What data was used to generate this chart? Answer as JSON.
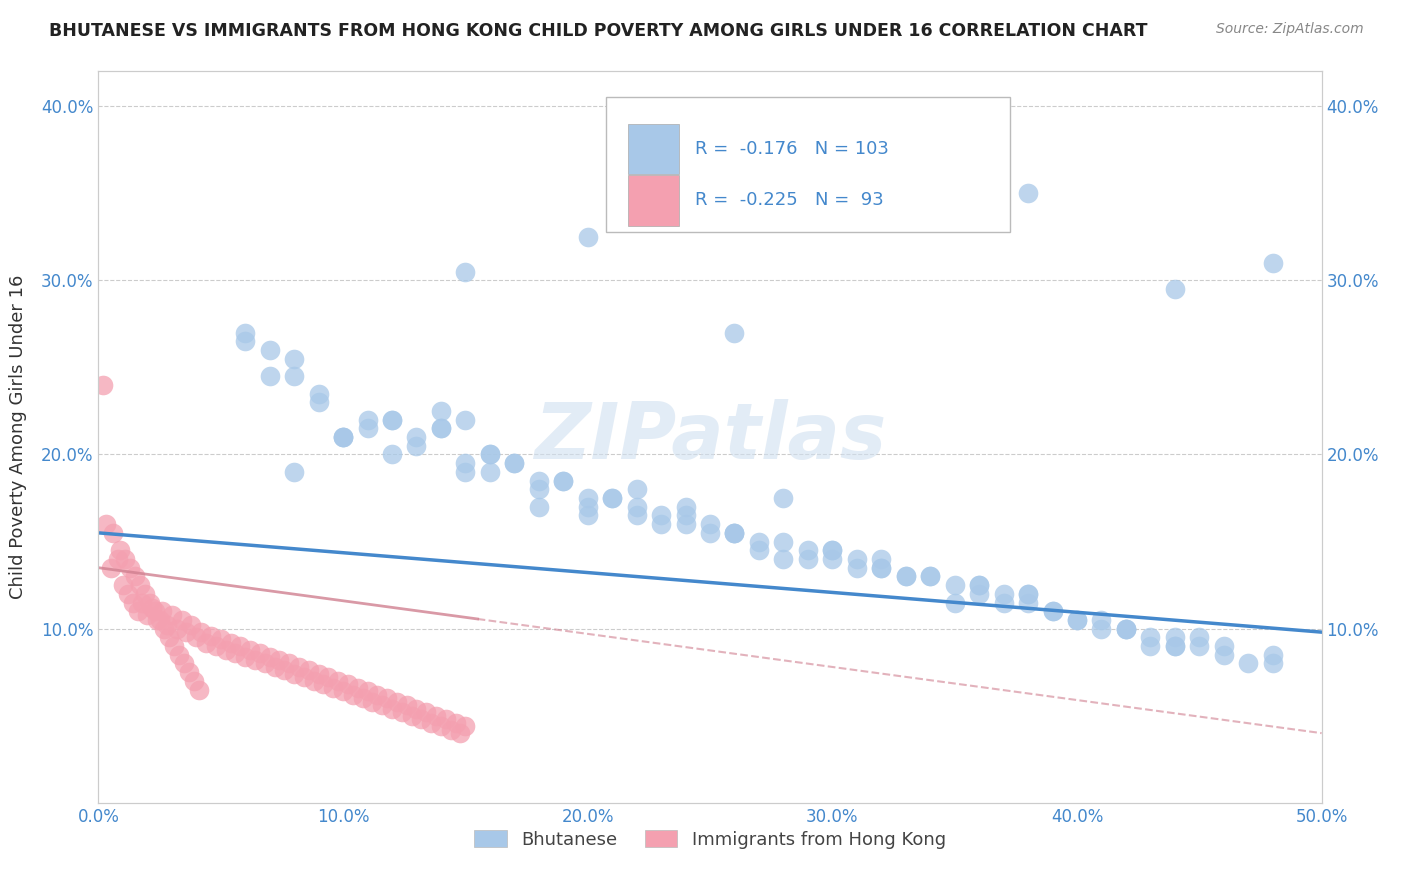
{
  "title": "BHUTANESE VS IMMIGRANTS FROM HONG KONG CHILD POVERTY AMONG GIRLS UNDER 16 CORRELATION CHART",
  "source": "Source: ZipAtlas.com",
  "ylabel": "Child Poverty Among Girls Under 16",
  "xlim": [
    0.0,
    0.5
  ],
  "ylim": [
    0.0,
    0.42
  ],
  "xticks": [
    0.0,
    0.1,
    0.2,
    0.3,
    0.4,
    0.5
  ],
  "yticks": [
    0.0,
    0.1,
    0.2,
    0.3,
    0.4
  ],
  "xtick_labels": [
    "0.0%",
    "10.0%",
    "20.0%",
    "30.0%",
    "40.0%",
    "50.0%"
  ],
  "ytick_labels_left": [
    "",
    "10.0%",
    "20.0%",
    "30.0%",
    "40.0%"
  ],
  "ytick_labels_right": [
    "",
    "10.0%",
    "20.0%",
    "30.0%",
    "40.0%"
  ],
  "bhutanese_color": "#a8c8e8",
  "hk_color": "#f4a0b0",
  "line_blue": "#4488cc",
  "line_pink": "#d08090",
  "R_blue": -0.176,
  "N_blue": 103,
  "R_pink": -0.225,
  "N_pink": 93,
  "legend_blue_label": "Bhutanese",
  "legend_pink_label": "Immigrants from Hong Kong",
  "watermark": "ZIPatlas",
  "background_color": "#ffffff",
  "grid_color": "#cccccc",
  "blue_line_x0": 0.0,
  "blue_line_y0": 0.155,
  "blue_line_x1": 0.5,
  "blue_line_y1": 0.098,
  "pink_line_x0": 0.0,
  "pink_line_y0": 0.135,
  "pink_line_x1": 0.5,
  "pink_line_y1": 0.04,
  "bhutanese_x": [
    0.32,
    0.38,
    0.28,
    0.46,
    0.12,
    0.18,
    0.25,
    0.33,
    0.42,
    0.15,
    0.08,
    0.22,
    0.3,
    0.44,
    0.1,
    0.35,
    0.2,
    0.16,
    0.26,
    0.4,
    0.14,
    0.36,
    0.24,
    0.48,
    0.06,
    0.19,
    0.31,
    0.43,
    0.11,
    0.27,
    0.37,
    0.21,
    0.13,
    0.29,
    0.45,
    0.17,
    0.23,
    0.39,
    0.07,
    0.34,
    0.41,
    0.09,
    0.28,
    0.16,
    0.22,
    0.38,
    0.12,
    0.3,
    0.44,
    0.18,
    0.26,
    0.14,
    0.32,
    0.2,
    0.46,
    0.1,
    0.36,
    0.24,
    0.08,
    0.42,
    0.15,
    0.33,
    0.21,
    0.27,
    0.39,
    0.13,
    0.47,
    0.06,
    0.19,
    0.35,
    0.23,
    0.31,
    0.43,
    0.11,
    0.29,
    0.17,
    0.37,
    0.25,
    0.41,
    0.09,
    0.34,
    0.45,
    0.07,
    0.28,
    0.16,
    0.22,
    0.38,
    0.14,
    0.3,
    0.2,
    0.44,
    0.18,
    0.26,
    0.32,
    0.1,
    0.4,
    0.24,
    0.12,
    0.36,
    0.08,
    0.42,
    0.15,
    0.48
  ],
  "bhutanese_y": [
    0.14,
    0.12,
    0.175,
    0.09,
    0.2,
    0.17,
    0.16,
    0.13,
    0.1,
    0.22,
    0.19,
    0.18,
    0.145,
    0.095,
    0.21,
    0.115,
    0.165,
    0.19,
    0.155,
    0.105,
    0.225,
    0.125,
    0.17,
    0.085,
    0.27,
    0.185,
    0.135,
    0.09,
    0.215,
    0.15,
    0.12,
    0.175,
    0.21,
    0.14,
    0.095,
    0.195,
    0.16,
    0.11,
    0.245,
    0.13,
    0.1,
    0.23,
    0.14,
    0.2,
    0.165,
    0.115,
    0.22,
    0.145,
    0.09,
    0.18,
    0.155,
    0.215,
    0.135,
    0.17,
    0.085,
    0.21,
    0.12,
    0.16,
    0.255,
    0.1,
    0.19,
    0.13,
    0.175,
    0.145,
    0.11,
    0.205,
    0.08,
    0.265,
    0.185,
    0.125,
    0.165,
    0.14,
    0.095,
    0.22,
    0.145,
    0.195,
    0.115,
    0.155,
    0.105,
    0.235,
    0.13,
    0.09,
    0.26,
    0.15,
    0.2,
    0.17,
    0.12,
    0.215,
    0.14,
    0.175,
    0.09,
    0.185,
    0.155,
    0.135,
    0.21,
    0.105,
    0.165,
    0.22,
    0.125,
    0.245,
    0.1,
    0.195,
    0.08
  ],
  "bhutanese_y_outliers": [
    0.38,
    0.35,
    0.325,
    0.295,
    0.27,
    0.305,
    0.31
  ],
  "bhutanese_x_outliers": [
    0.32,
    0.38,
    0.2,
    0.44,
    0.26,
    0.15,
    0.48
  ],
  "hk_x": [
    0.005,
    0.008,
    0.01,
    0.012,
    0.014,
    0.016,
    0.018,
    0.02,
    0.022,
    0.024,
    0.026,
    0.028,
    0.03,
    0.032,
    0.034,
    0.036,
    0.038,
    0.04,
    0.042,
    0.044,
    0.046,
    0.048,
    0.05,
    0.052,
    0.054,
    0.056,
    0.058,
    0.06,
    0.062,
    0.064,
    0.066,
    0.068,
    0.07,
    0.072,
    0.074,
    0.076,
    0.078,
    0.08,
    0.082,
    0.084,
    0.086,
    0.088,
    0.09,
    0.092,
    0.094,
    0.096,
    0.098,
    0.1,
    0.102,
    0.104,
    0.106,
    0.108,
    0.11,
    0.112,
    0.114,
    0.116,
    0.118,
    0.12,
    0.122,
    0.124,
    0.126,
    0.128,
    0.13,
    0.132,
    0.134,
    0.136,
    0.138,
    0.14,
    0.142,
    0.144,
    0.146,
    0.148,
    0.15,
    0.003,
    0.006,
    0.009,
    0.011,
    0.013,
    0.015,
    0.017,
    0.019,
    0.021,
    0.023,
    0.025,
    0.027,
    0.029,
    0.031,
    0.033,
    0.035,
    0.037,
    0.039,
    0.041,
    0.002
  ],
  "hk_y": [
    0.135,
    0.14,
    0.125,
    0.12,
    0.115,
    0.11,
    0.115,
    0.108,
    0.112,
    0.105,
    0.11,
    0.102,
    0.108,
    0.1,
    0.105,
    0.098,
    0.102,
    0.095,
    0.098,
    0.092,
    0.096,
    0.09,
    0.094,
    0.088,
    0.092,
    0.086,
    0.09,
    0.084,
    0.088,
    0.082,
    0.086,
    0.08,
    0.084,
    0.078,
    0.082,
    0.076,
    0.08,
    0.074,
    0.078,
    0.072,
    0.076,
    0.07,
    0.074,
    0.068,
    0.072,
    0.066,
    0.07,
    0.064,
    0.068,
    0.062,
    0.066,
    0.06,
    0.064,
    0.058,
    0.062,
    0.056,
    0.06,
    0.054,
    0.058,
    0.052,
    0.056,
    0.05,
    0.054,
    0.048,
    0.052,
    0.046,
    0.05,
    0.044,
    0.048,
    0.042,
    0.046,
    0.04,
    0.044,
    0.16,
    0.155,
    0.145,
    0.14,
    0.135,
    0.13,
    0.125,
    0.12,
    0.115,
    0.11,
    0.105,
    0.1,
    0.095,
    0.09,
    0.085,
    0.08,
    0.075,
    0.07,
    0.065,
    0.24
  ]
}
